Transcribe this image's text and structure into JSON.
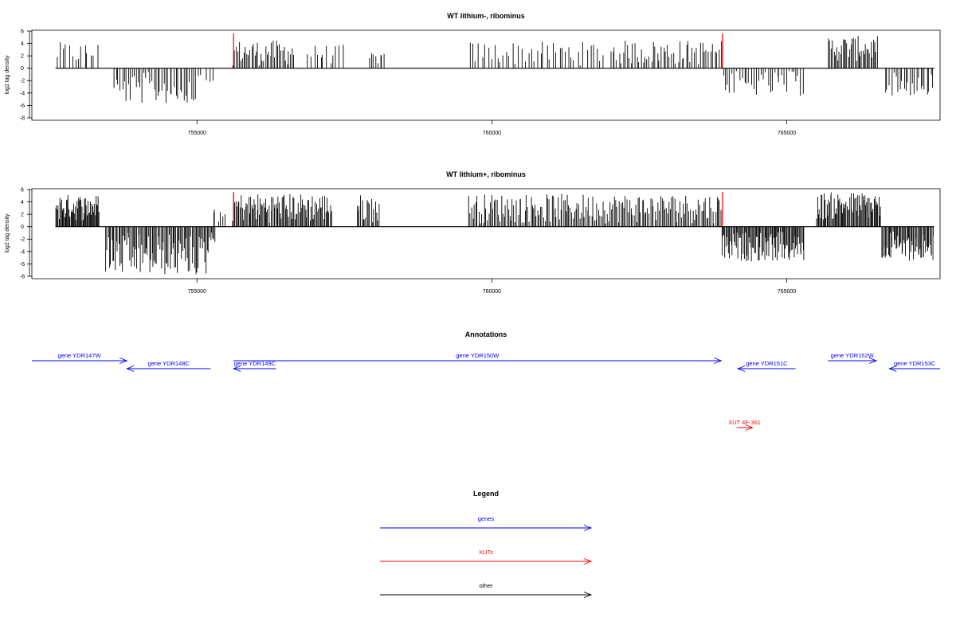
{
  "chart_data": [
    {
      "type": "bar",
      "title": "WT lithium-, ribominus",
      "ylabel": "log2 tag density",
      "xlim": [
        752200,
        767600
      ],
      "ylim": [
        -8,
        6
      ],
      "xticks": [
        755000,
        760000,
        765000
      ],
      "xtick_labels": [
        "755000",
        "760000",
        "765000"
      ],
      "yticks": [
        6,
        4,
        2,
        0,
        -2,
        -4,
        -6,
        -8
      ],
      "ytick_labels": [
        "6",
        "4",
        "2",
        "0",
        "-2",
        "-4",
        "-6",
        "-8"
      ],
      "axis_line": [
        752600,
        767500
      ],
      "highlight_color": "#ff0000",
      "highlights": [
        {
          "x": 755620,
          "y": 5.6
        },
        {
          "x": 763910,
          "y": 5.6
        }
      ],
      "segments": [
        {
          "from": 752600,
          "to": 753330,
          "sign": 1,
          "n": 14,
          "min": 0.3,
          "max": 4.2
        },
        {
          "from": 753580,
          "to": 755000,
          "sign": -1,
          "n": 42,
          "min": 0.5,
          "max": 5.8
        },
        {
          "from": 755000,
          "to": 755300,
          "sign": -1,
          "n": 5,
          "min": 0.3,
          "max": 2.2
        },
        {
          "from": 755600,
          "to": 756650,
          "sign": 1,
          "n": 40,
          "min": 0.4,
          "max": 4.5
        },
        {
          "from": 756850,
          "to": 757500,
          "sign": 1,
          "n": 12,
          "min": 0.6,
          "max": 3.8
        },
        {
          "from": 757900,
          "to": 758200,
          "sign": 1,
          "n": 8,
          "min": 0.5,
          "max": 2.6
        },
        {
          "from": 759600,
          "to": 761900,
          "sign": 1,
          "n": 44,
          "min": 0.4,
          "max": 4.3
        },
        {
          "from": 762000,
          "to": 763900,
          "sign": 1,
          "n": 55,
          "min": 0.4,
          "max": 4.5
        },
        {
          "from": 763900,
          "to": 765300,
          "sign": -1,
          "n": 35,
          "min": 0.4,
          "max": 4.5
        },
        {
          "from": 765700,
          "to": 766550,
          "sign": 1,
          "n": 38,
          "min": 1.0,
          "max": 5.2
        },
        {
          "from": 766650,
          "to": 767500,
          "sign": -1,
          "n": 24,
          "min": 0.6,
          "max": 4.5
        }
      ]
    },
    {
      "type": "bar",
      "title": "WT lithium+, ribominus",
      "ylabel": "log2 tag density",
      "xlim": [
        752200,
        767600
      ],
      "ylim": [
        -8,
        6
      ],
      "xticks": [
        755000,
        760000,
        765000
      ],
      "xtick_labels": [
        "755000",
        "760000",
        "765000"
      ],
      "yticks": [
        6,
        4,
        2,
        0,
        -2,
        -4,
        -6,
        -8
      ],
      "ytick_labels": [
        "6",
        "4",
        "2",
        "0",
        "-2",
        "-4",
        "-6",
        "-8"
      ],
      "axis_line": [
        752600,
        767500
      ],
      "highlight_color": "#ff0000",
      "highlights": [
        {
          "x": 755620,
          "y": 5.6
        },
        {
          "x": 763910,
          "y": 5.6
        }
      ],
      "segments": [
        {
          "from": 752600,
          "to": 753350,
          "sign": 1,
          "n": 55,
          "min": 0.8,
          "max": 5.2
        },
        {
          "from": 753450,
          "to": 755200,
          "sign": -1,
          "n": 90,
          "min": 1.0,
          "max": 7.9
        },
        {
          "from": 755200,
          "to": 755320,
          "sign": -1,
          "n": 6,
          "min": 0.4,
          "max": 2.5
        },
        {
          "from": 755250,
          "to": 755500,
          "sign": 1,
          "n": 6,
          "min": 0.4,
          "max": 3.2
        },
        {
          "from": 755600,
          "to": 757300,
          "sign": 1,
          "n": 95,
          "min": 0.6,
          "max": 5.4
        },
        {
          "from": 757700,
          "to": 758100,
          "sign": 1,
          "n": 18,
          "min": 0.6,
          "max": 5.2
        },
        {
          "from": 759600,
          "to": 763900,
          "sign": 1,
          "n": 180,
          "min": 0.5,
          "max": 5.3
        },
        {
          "from": 763900,
          "to": 765300,
          "sign": -1,
          "n": 90,
          "min": 0.8,
          "max": 5.6
        },
        {
          "from": 765500,
          "to": 766600,
          "sign": 1,
          "n": 70,
          "min": 1.0,
          "max": 5.6
        },
        {
          "from": 766600,
          "to": 767500,
          "sign": -1,
          "n": 55,
          "min": 0.6,
          "max": 5.5
        }
      ]
    }
  ],
  "annotations": {
    "title": "Annotations",
    "gene_color": "#0000ff",
    "xut_color": "#ff0000",
    "items": [
      {
        "label": "gene YDR147W",
        "kind": "gene",
        "from": 752200,
        "to": 753810,
        "dir": "right",
        "row": 1
      },
      {
        "label": "gene YDR148C",
        "kind": "gene",
        "from": 753810,
        "to": 755230,
        "dir": "left",
        "row": 2
      },
      {
        "label": "gene YDR149C",
        "kind": "gene",
        "from": 755620,
        "to": 756340,
        "dir": "left",
        "row": 2
      },
      {
        "label": "gene YDR150W",
        "kind": "gene",
        "from": 755620,
        "to": 763890,
        "dir": "right",
        "row": 1
      },
      {
        "label": "gene YDR151C",
        "kind": "gene",
        "from": 764170,
        "to": 765150,
        "dir": "left",
        "row": 2
      },
      {
        "label": "gene YDR152W",
        "kind": "gene",
        "from": 765700,
        "to": 766520,
        "dir": "right",
        "row": 1
      },
      {
        "label": "gene YDR153C",
        "kind": "gene",
        "from": 766740,
        "to": 767600,
        "dir": "left",
        "row": 2
      },
      {
        "label": "XUT 4F-361",
        "kind": "xut",
        "from": 764150,
        "to": 764420,
        "dir": "right",
        "row": 3
      }
    ]
  },
  "legend": {
    "title": "Legend",
    "items": [
      {
        "label": "genes",
        "color": "#0000ff"
      },
      {
        "label": "XUTs",
        "color": "#ff0000"
      },
      {
        "label": "other",
        "color": "#000000"
      }
    ]
  }
}
